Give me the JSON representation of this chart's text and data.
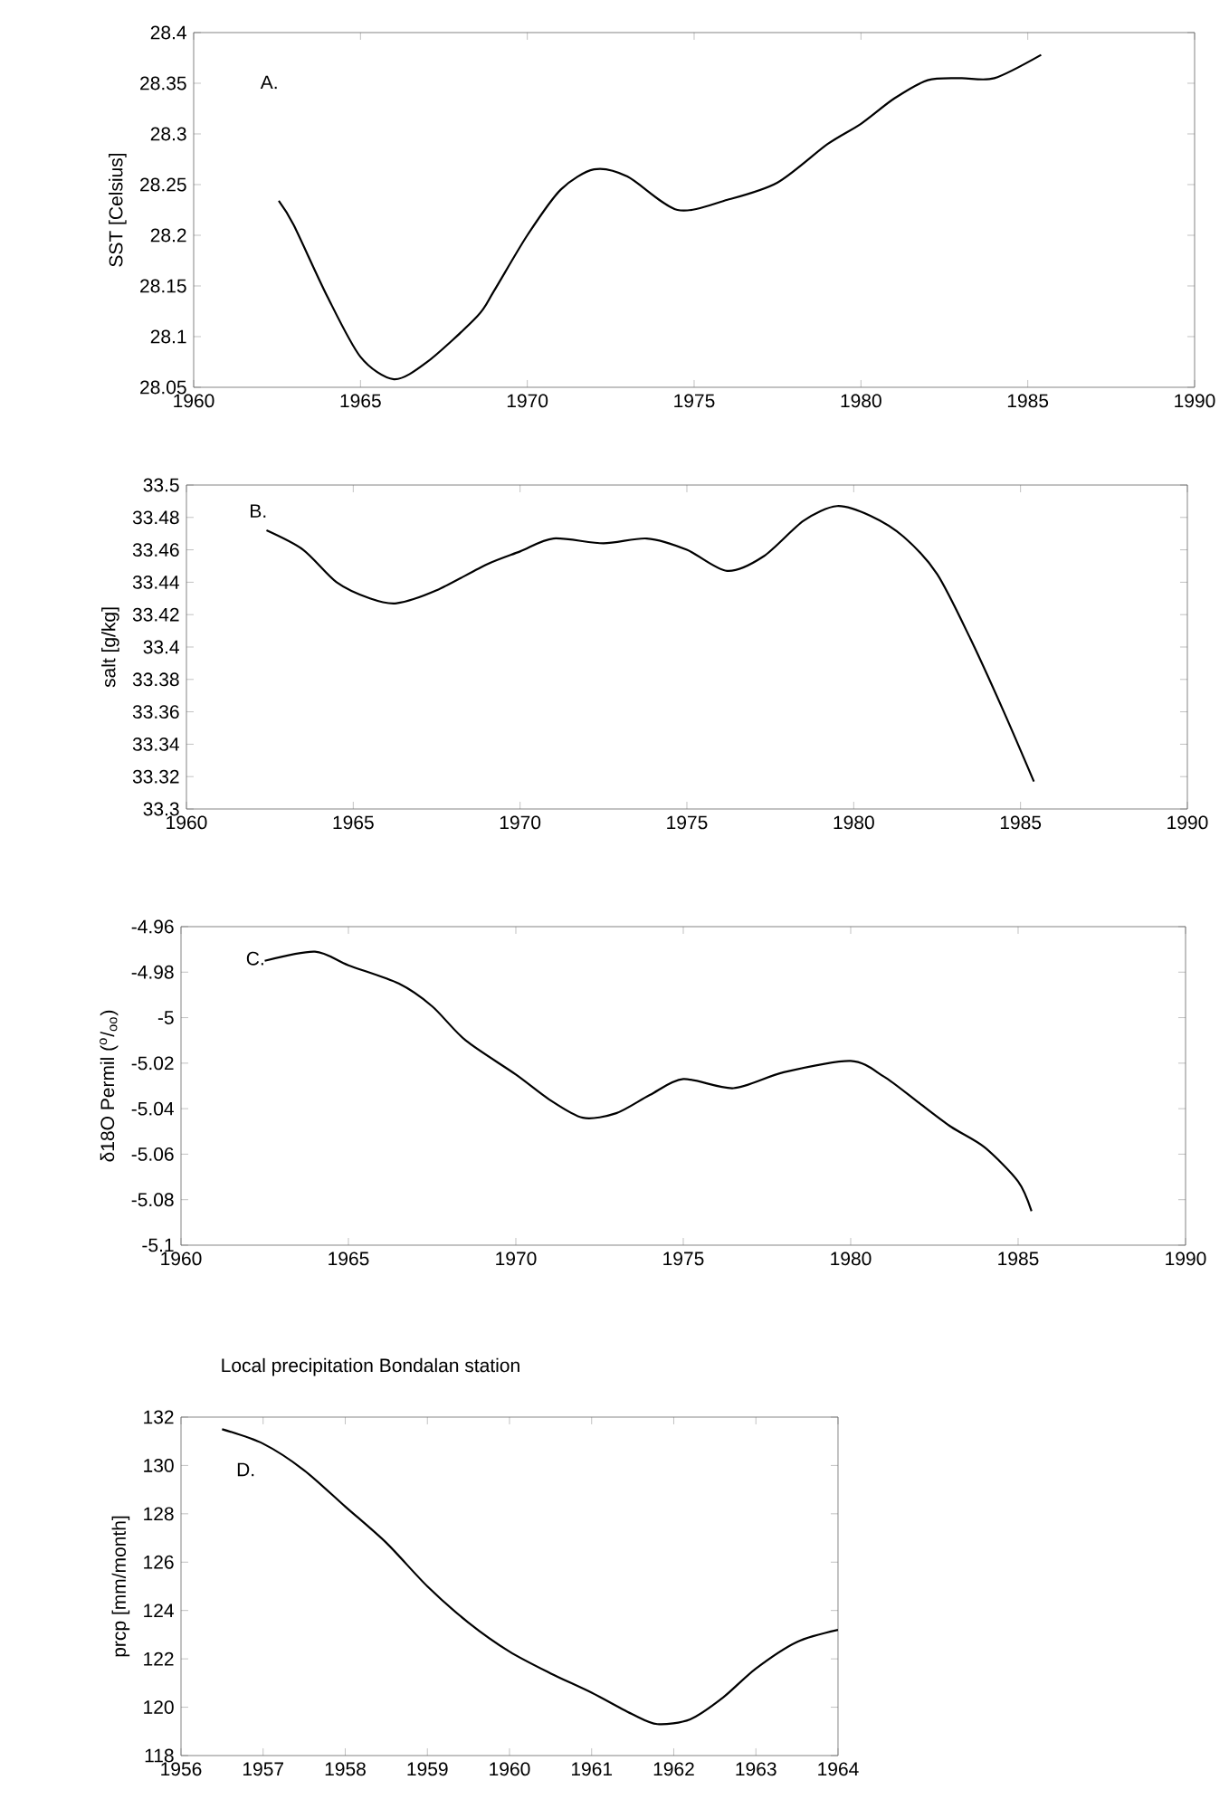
{
  "chart_data": [
    {
      "type": "line",
      "ylabel": "SST [Celsius]",
      "annotations": [
        "A."
      ],
      "xlim": [
        1960,
        1990
      ],
      "xticks": [
        1960,
        1965,
        1970,
        1975,
        1980,
        1985,
        1990
      ],
      "ylim": [
        28.05,
        28.4
      ],
      "yticks": [
        28.05,
        28.1,
        28.15,
        28.2,
        28.25,
        28.3,
        28.35,
        28.4
      ],
      "grid": false,
      "series": [
        {
          "color": "#000000",
          "x": [
            1962.55,
            1963,
            1964,
            1965,
            1966,
            1967,
            1968.5,
            1969,
            1970,
            1971,
            1972,
            1973,
            1974.5,
            1976,
            1977.5,
            1979,
            1980,
            1981,
            1982,
            1983,
            1984,
            1985.4
          ],
          "values": [
            28.234,
            28.21,
            28.14,
            28.08,
            28.058,
            28.075,
            28.12,
            28.145,
            28.2,
            28.245,
            28.265,
            28.258,
            28.225,
            28.235,
            28.252,
            28.29,
            28.31,
            28.335,
            28.353,
            28.355,
            28.355,
            28.378
          ]
        }
      ]
    },
    {
      "type": "line",
      "ylabel": "salt [g/kg]",
      "annotations": [
        "B."
      ],
      "xlim": [
        1960,
        1990
      ],
      "xticks": [
        1960,
        1965,
        1970,
        1975,
        1980,
        1985,
        1990
      ],
      "ylim": [
        33.3,
        33.5
      ],
      "yticks": [
        33.3,
        33.32,
        33.34,
        33.36,
        33.38,
        33.4,
        33.42,
        33.44,
        33.46,
        33.48,
        33.5
      ],
      "grid": false,
      "series": [
        {
          "color": "#000000",
          "x": [
            1962.4,
            1963.5,
            1964.5,
            1965.5,
            1966.3,
            1967.5,
            1969,
            1970,
            1971,
            1972.5,
            1973.8,
            1975,
            1976.2,
            1977.3,
            1978.5,
            1979.5,
            1980.5,
            1981.5,
            1982.5,
            1983.5,
            1984.5,
            1985.4
          ],
          "values": [
            33.472,
            33.46,
            33.44,
            33.43,
            33.427,
            33.435,
            33.451,
            33.459,
            33.467,
            33.464,
            33.467,
            33.46,
            33.447,
            33.456,
            33.478,
            33.487,
            33.481,
            33.468,
            33.445,
            33.405,
            33.36,
            33.317
          ]
        }
      ]
    },
    {
      "type": "line",
      "ylabel": "δ18O Permil ($^{o}$/$_{oo}$)",
      "annotations": [
        "C."
      ],
      "xlim": [
        1960,
        1990
      ],
      "xticks": [
        1960,
        1965,
        1970,
        1975,
        1980,
        1985,
        1990
      ],
      "ylim": [
        -5.1,
        -4.96
      ],
      "yticks": [
        -5.1,
        -5.08,
        -5.06,
        -5.04,
        -5.02,
        -5,
        -4.98,
        -4.96
      ],
      "grid": false,
      "series": [
        {
          "color": "#000000",
          "x": [
            1962.5,
            1964,
            1965,
            1966.5,
            1967.5,
            1968.5,
            1970,
            1971,
            1972,
            1973,
            1974,
            1975,
            1976.5,
            1978,
            1980,
            1981,
            1982,
            1983,
            1984,
            1985,
            1985.4
          ],
          "values": [
            -4.975,
            -4.971,
            -4.977,
            -4.985,
            -4.995,
            -5.01,
            -5.025,
            -5.036,
            -5.044,
            -5.042,
            -5.034,
            -5.027,
            -5.031,
            -5.024,
            -5.019,
            -5.026,
            -5.037,
            -5.048,
            -5.057,
            -5.072,
            -5.085
          ]
        }
      ]
    },
    {
      "type": "line",
      "title": "Local precipitation Bondalan station",
      "ylabel": "prcp [mm/month]",
      "annotations": [
        "D."
      ],
      "xlim": [
        1956,
        1964
      ],
      "xticks": [
        1956,
        1957,
        1958,
        1959,
        1960,
        1961,
        1962,
        1963,
        1964
      ],
      "ylim": [
        118,
        132
      ],
      "yticks": [
        118,
        120,
        122,
        124,
        126,
        128,
        130,
        132
      ],
      "grid": false,
      "series": [
        {
          "color": "#000000",
          "x": [
            1956.5,
            1957,
            1957.5,
            1958,
            1958.5,
            1959,
            1959.5,
            1960,
            1960.5,
            1961,
            1961.5,
            1961.8,
            1962.2,
            1962.6,
            1963,
            1963.5,
            1964
          ],
          "values": [
            131.5,
            130.9,
            129.8,
            128.3,
            126.8,
            125.0,
            123.5,
            122.3,
            121.4,
            120.6,
            119.7,
            119.3,
            119.5,
            120.4,
            121.6,
            122.7,
            123.2
          ]
        }
      ]
    }
  ]
}
